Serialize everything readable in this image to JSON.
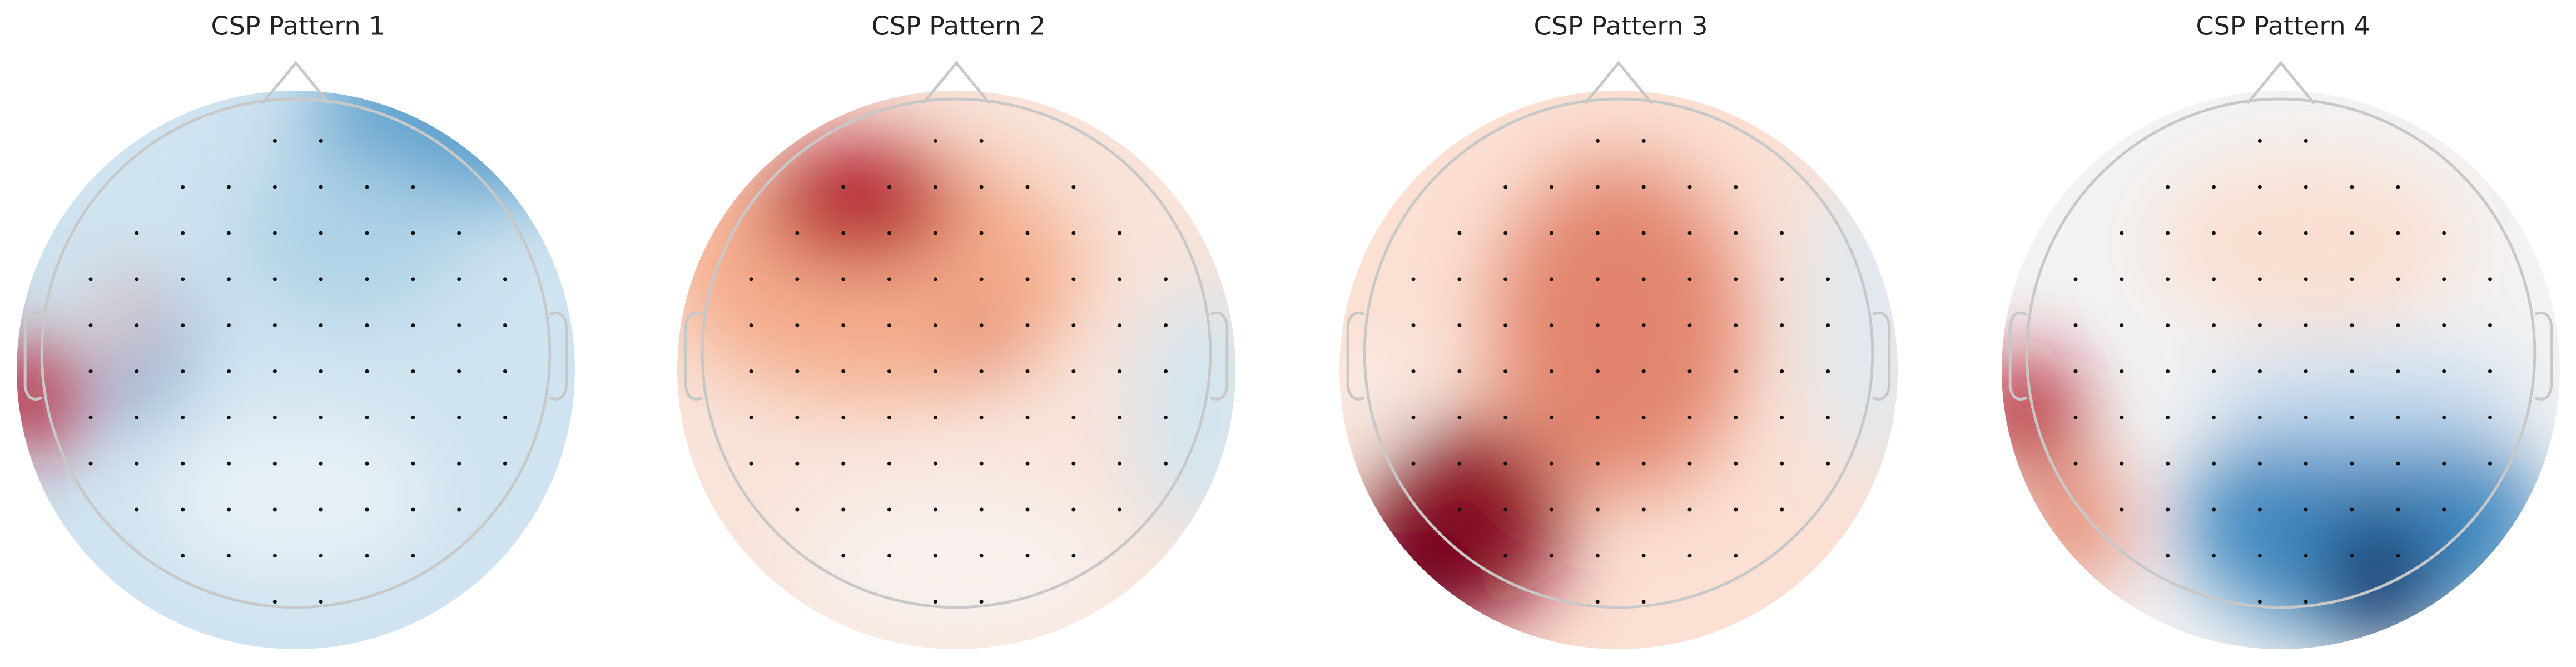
{
  "panels": [
    {
      "title": "CSP Pattern 1"
    },
    {
      "title": "CSP Pattern 2"
    },
    {
      "title": "CSP Pattern 3"
    },
    {
      "title": "CSP Pattern 4"
    }
  ]
}
